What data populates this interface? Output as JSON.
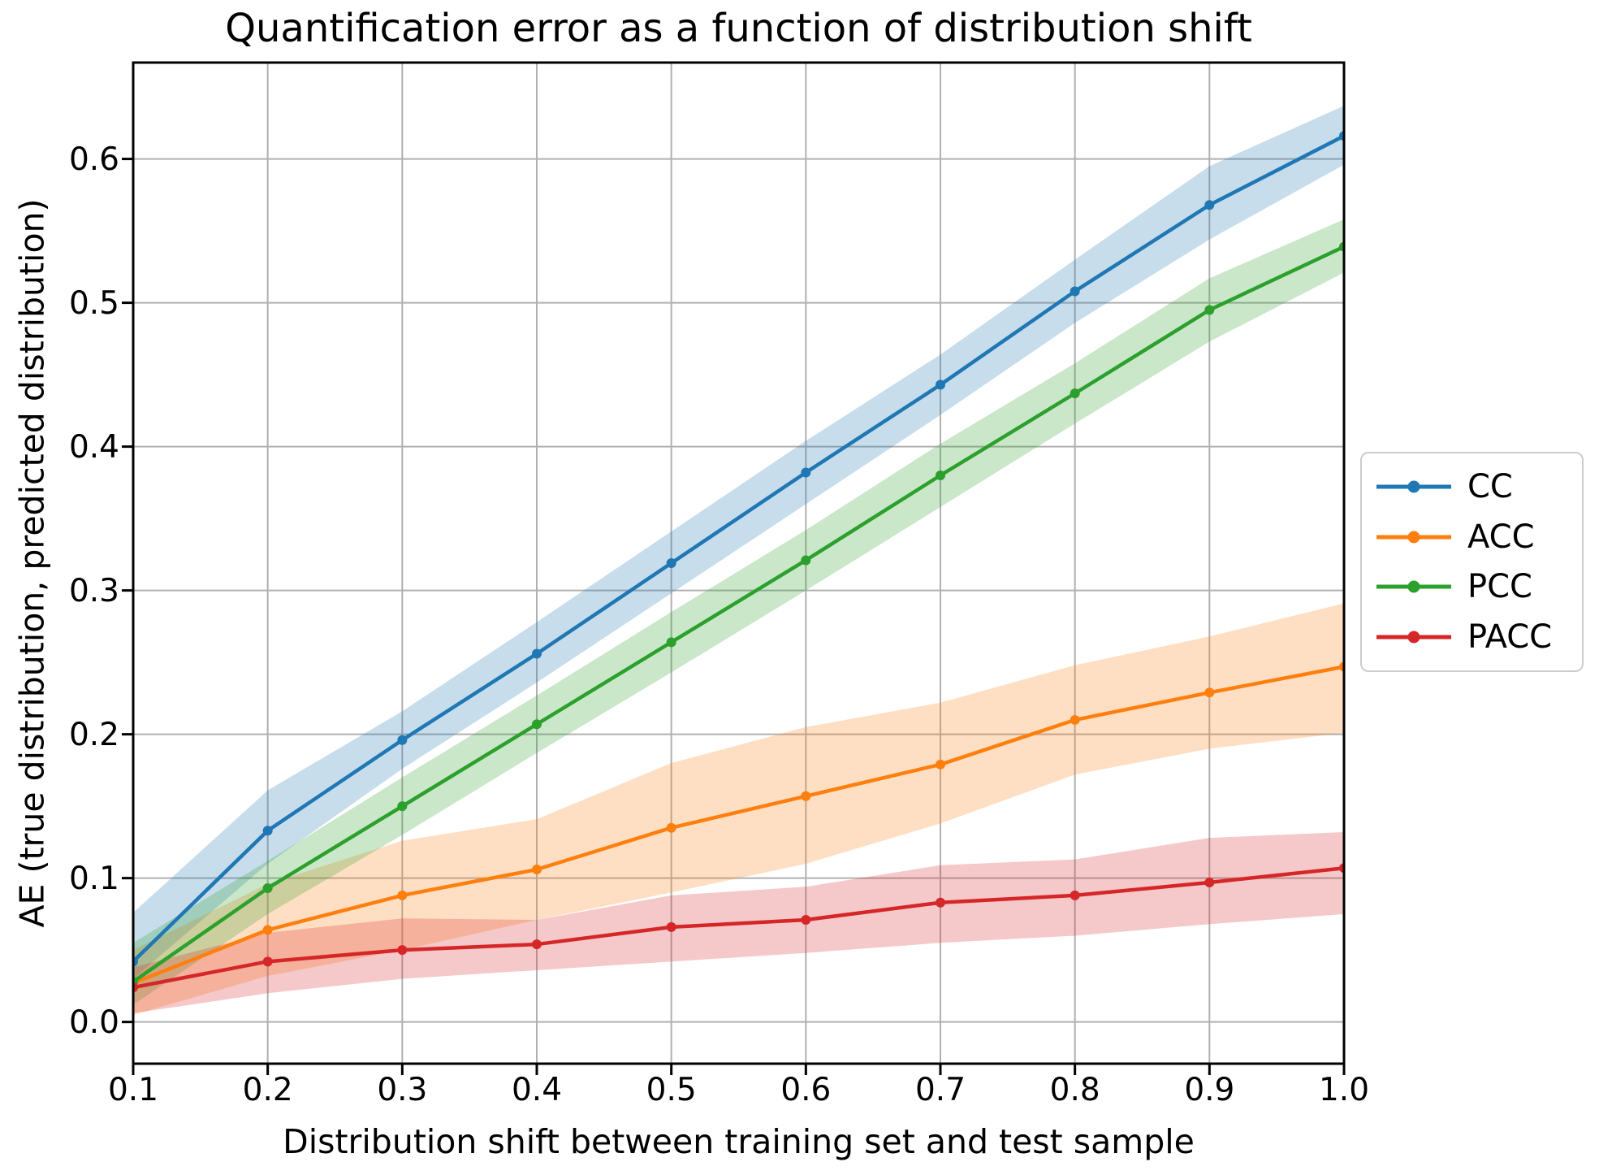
{
  "title": "Quantification error as a function of distribution shift",
  "axes": {
    "xlabel": "Distribution shift between training set and test sample",
    "ylabel": "AE (true distribution, predicted distribution)",
    "x_tick_labels": [
      "0.1",
      "0.2",
      "0.3",
      "0.4",
      "0.5",
      "0.6",
      "0.7",
      "0.8",
      "0.9",
      "1.0"
    ],
    "x_tick_values": [
      0.1,
      0.2,
      0.3,
      0.4,
      0.5,
      0.6,
      0.7,
      0.8,
      0.9,
      1.0
    ],
    "y_tick_labels": [
      "0.0",
      "0.1",
      "0.2",
      "0.3",
      "0.4",
      "0.5",
      "0.6"
    ],
    "y_tick_values": [
      0.0,
      0.1,
      0.2,
      0.3,
      0.4,
      0.5,
      0.6
    ],
    "xlim": [
      0.1,
      1.0
    ],
    "ylim": [
      -0.029,
      0.667
    ],
    "grid": true,
    "grid_color": "#b0b0b0"
  },
  "legend": {
    "position": "outside-center-right",
    "items": [
      "CC",
      "ACC",
      "PCC",
      "PACC"
    ]
  },
  "chart_data": {
    "type": "line",
    "title": "Quantification error as a function of distribution shift",
    "xlabel": "Distribution shift between training set and test sample",
    "ylabel": "AE (true distribution, predicted distribution)",
    "x": [
      0.1,
      0.2,
      0.3,
      0.4,
      0.5,
      0.6,
      0.7,
      0.8,
      0.9,
      1.0
    ],
    "xlim": [
      0.1,
      1.0
    ],
    "ylim": [
      -0.029,
      0.667
    ],
    "grid": true,
    "legend_position": "outside right",
    "band_opacity": 0.25,
    "series": [
      {
        "name": "CC",
        "color": "#1f77b4",
        "values": [
          0.042,
          0.133,
          0.196,
          0.256,
          0.319,
          0.382,
          0.443,
          0.508,
          0.568,
          0.616
        ],
        "band_low": [
          0.03,
          0.11,
          0.176,
          0.236,
          0.298,
          0.36,
          0.422,
          0.486,
          0.544,
          0.596
        ],
        "band_high": [
          0.076,
          0.161,
          0.216,
          0.278,
          0.341,
          0.404,
          0.464,
          0.53,
          0.595,
          0.637
        ]
      },
      {
        "name": "ACC",
        "color": "#ff7f0e",
        "values": [
          0.027,
          0.064,
          0.088,
          0.106,
          0.135,
          0.157,
          0.179,
          0.21,
          0.229,
          0.247
        ],
        "band_low": [
          0.005,
          0.032,
          0.05,
          0.071,
          0.09,
          0.11,
          0.138,
          0.172,
          0.19,
          0.201
        ],
        "band_high": [
          0.05,
          0.096,
          0.126,
          0.141,
          0.18,
          0.205,
          0.222,
          0.248,
          0.268,
          0.291
        ]
      },
      {
        "name": "PCC",
        "color": "#2ca02c",
        "values": [
          0.028,
          0.093,
          0.15,
          0.207,
          0.264,
          0.321,
          0.38,
          0.437,
          0.495,
          0.539
        ],
        "band_low": [
          0.012,
          0.075,
          0.13,
          0.187,
          0.243,
          0.3,
          0.358,
          0.416,
          0.473,
          0.521
        ],
        "band_high": [
          0.055,
          0.112,
          0.17,
          0.227,
          0.285,
          0.342,
          0.402,
          0.458,
          0.517,
          0.558
        ]
      },
      {
        "name": "PACC",
        "color": "#d62728",
        "values": [
          0.024,
          0.042,
          0.05,
          0.054,
          0.066,
          0.071,
          0.083,
          0.088,
          0.097,
          0.107
        ],
        "band_low": [
          0.006,
          0.02,
          0.03,
          0.036,
          0.042,
          0.048,
          0.055,
          0.06,
          0.068,
          0.075
        ],
        "band_high": [
          0.038,
          0.062,
          0.072,
          0.071,
          0.088,
          0.094,
          0.109,
          0.113,
          0.128,
          0.132
        ]
      }
    ]
  }
}
